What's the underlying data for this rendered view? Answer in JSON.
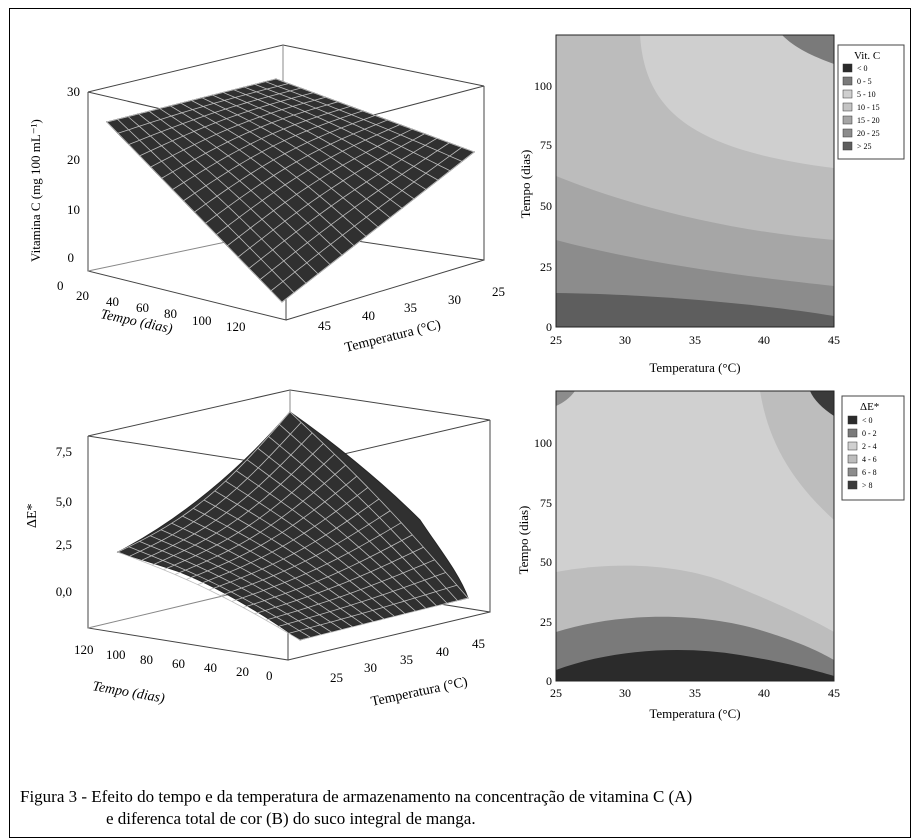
{
  "caption": {
    "line1": "Figura 3 - Efeito do tempo e da temperatura de armazenamento na concentração de vitamina C (A)",
    "line2": "e diferenca total de cor (B) do suco integral de manga."
  },
  "chart_data": [
    {
      "type": "surface3d",
      "zlabel": "Vitamina C (mg 100 mL⁻¹)",
      "xlabel": "Tempo (dias)",
      "ylabel": "Temperatura (°C)",
      "x_ticks": [
        "20",
        "40",
        "60",
        "80",
        "100",
        "120"
      ],
      "y_ticks": [
        "25",
        "30",
        "35",
        "40",
        "45"
      ],
      "z_ticks": [
        "0",
        "10",
        "20",
        "30"
      ],
      "xlim": [
        0,
        120
      ],
      "ylim": [
        25,
        45
      ],
      "zlim": [
        0,
        30
      ],
      "surface_color": "#303030",
      "grid_color": "#bdbdbd"
    },
    {
      "type": "contour",
      "xlabel": "Temperatura (°C)",
      "ylabel": "Tempo (dias)",
      "x_ticks": [
        "25",
        "30",
        "35",
        "40",
        "45"
      ],
      "y_ticks": [
        "0",
        "25",
        "50",
        "75",
        "100"
      ],
      "xlim": [
        25,
        45
      ],
      "ylim": [
        0,
        120
      ],
      "legend_title": "Vit. C",
      "legend_position": "right",
      "levels": [
        {
          "label": "<   0",
          "color": "#2b2b2b"
        },
        {
          "label": "0  -   5",
          "color": "#7a7a7a"
        },
        {
          "label": "5  -  10",
          "color": "#cfcfcf"
        },
        {
          "label": "10  -  15",
          "color": "#c4c4c4"
        },
        {
          "label": "15  -  20",
          "color": "#a5a5a5"
        },
        {
          "label": "20  -  25",
          "color": "#8c8c8c"
        },
        {
          "label": ">  25",
          "color": "#5e5e5e"
        }
      ]
    },
    {
      "type": "surface3d",
      "zlabel": "ΔE*",
      "xlabel": "Tempo (dias)",
      "ylabel": "Temperatura (°C)",
      "x_ticks": [
        "120",
        "100",
        "80",
        "60",
        "40",
        "20",
        "0"
      ],
      "y_ticks": [
        "25",
        "30",
        "35",
        "40",
        "45"
      ],
      "z_ticks": [
        "0,0",
        "2,5",
        "5,0",
        "7,5"
      ],
      "xlim": [
        0,
        120
      ],
      "ylim": [
        25,
        45
      ],
      "zlim": [
        0,
        9
      ],
      "surface_color": "#303030",
      "grid_color": "#bdbdbd"
    },
    {
      "type": "contour",
      "xlabel": "Temperatura (°C)",
      "ylabel": "Tempo (dias)",
      "x_ticks": [
        "25",
        "30",
        "35",
        "40",
        "45"
      ],
      "y_ticks": [
        "0",
        "25",
        "50",
        "75",
        "100"
      ],
      "xlim": [
        25,
        45
      ],
      "ylim": [
        0,
        120
      ],
      "legend_title": "ΔE*",
      "legend_position": "right",
      "levels": [
        {
          "label": "<  0",
          "color": "#2b2b2b"
        },
        {
          "label": "0  -  2",
          "color": "#7a7a7a"
        },
        {
          "label": "2  -  4",
          "color": "#d0d0d0"
        },
        {
          "label": "4  -  6",
          "color": "#bdbdbd"
        },
        {
          "label": "6  -  8",
          "color": "#8c8c8c"
        },
        {
          "label": ">  8",
          "color": "#3a3a3a"
        }
      ]
    }
  ]
}
